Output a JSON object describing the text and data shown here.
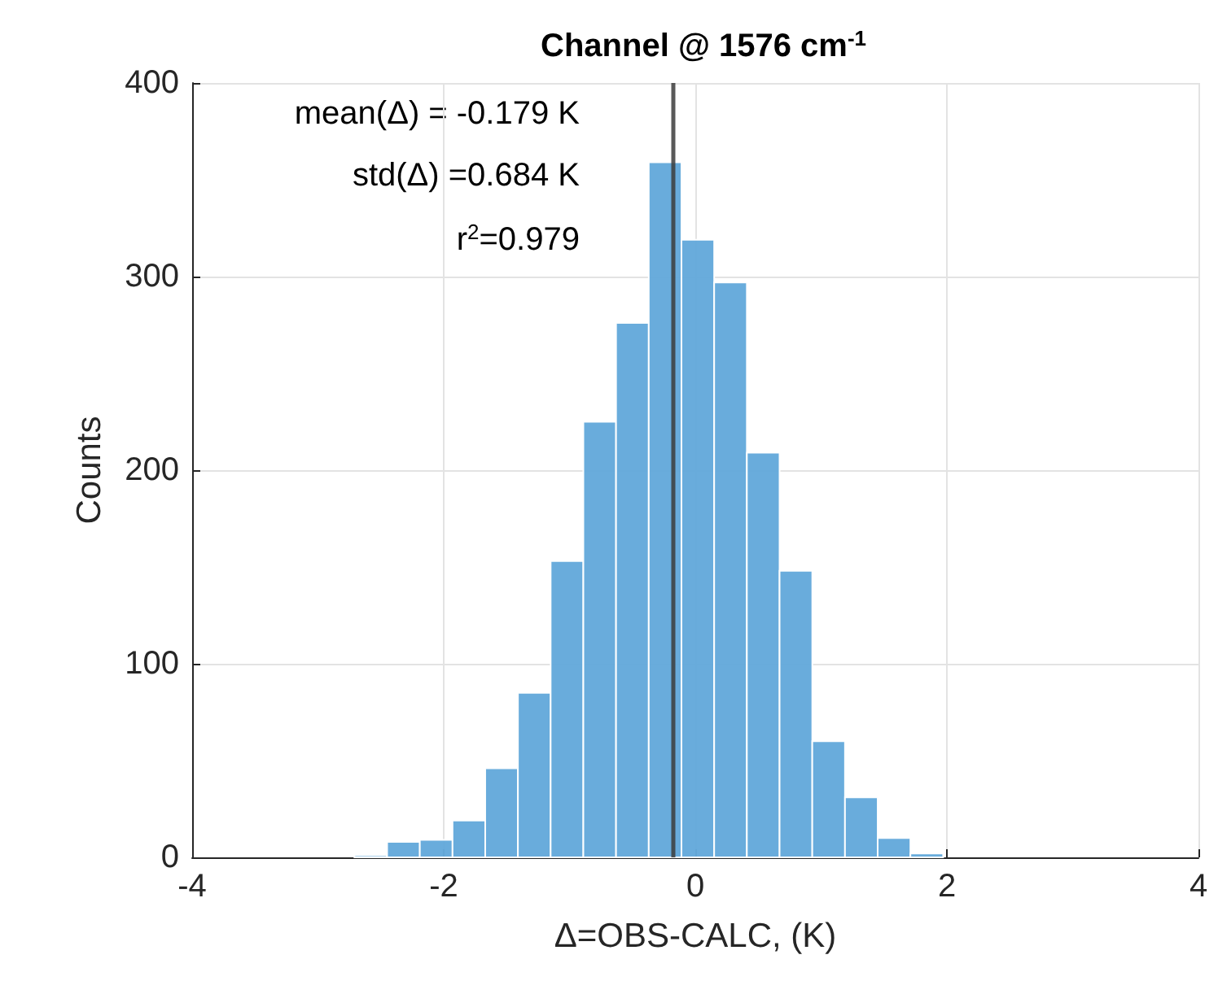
{
  "chart_data": {
    "type": "histogram",
    "title": "Channel @ 1576 cm$^{-1}$",
    "xlabel": "Δ=OBS-CALC, (K)",
    "ylabel": "Counts",
    "bins": [
      -2.71,
      -2.45,
      -2.19,
      -1.93,
      -1.67,
      -1.41,
      -1.15,
      -0.89,
      -0.63,
      -0.37,
      -0.11,
      0.15,
      0.41,
      0.67,
      0.93,
      1.19,
      1.45,
      1.71,
      1.97
    ],
    "values": [
      1,
      8,
      9,
      19,
      46,
      85,
      153,
      225,
      276,
      359,
      319,
      297,
      209,
      148,
      60,
      31,
      10,
      2
    ],
    "color": "#64a9db",
    "xlim": [
      -4,
      4
    ],
    "xticks": [
      -4,
      -2,
      0,
      2,
      4
    ],
    "ylim": [
      0,
      400
    ],
    "yticks": [
      0,
      100,
      200,
      300,
      400
    ],
    "grid": true,
    "ref_lines": [
      {
        "axis": "x",
        "value": -0.179,
        "color": "#3c3c3c"
      }
    ],
    "annotations": [
      "mean(Δ) = -0.179 K",
      "std(Δ) =0.684 K",
      "r$^{2}$=0.979"
    ]
  }
}
